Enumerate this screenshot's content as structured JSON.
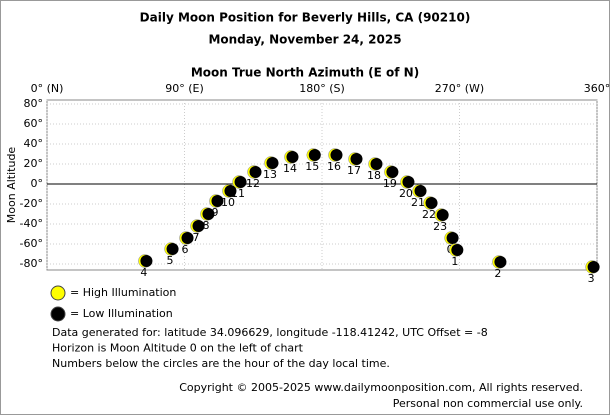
{
  "chart_data": {
    "type": "scatter",
    "title": "Daily Moon Position for Beverly Hills, CA (90210)",
    "subtitle": "Monday, November 24, 2025",
    "x_label": "Moon True North Azimuth (E of N)",
    "y_label": "Moon Altitude",
    "x": [
      64.1,
      81.2,
      91.0,
      98.2,
      104.7,
      110.6,
      119.1,
      125.7,
      135.5,
      146.6,
      159.7,
      174.3,
      188.5,
      201.6,
      214.7,
      225.1,
      235.6,
      243.5,
      250.7,
      258.0,
      264.5,
      267.6,
      295.8,
      356.8
    ],
    "values": [
      -77,
      -65,
      -54,
      -42,
      -30,
      -17,
      -7,
      2,
      12,
      21,
      27,
      29,
      29,
      25,
      20,
      12,
      2,
      -7,
      -19,
      -31,
      -54,
      -66,
      -78,
      -83
    ],
    "point_labels": [
      4,
      5,
      6,
      7,
      8,
      9,
      10,
      11,
      12,
      13,
      14,
      15,
      16,
      17,
      18,
      19,
      20,
      21,
      22,
      23,
      0,
      1,
      2,
      3
    ],
    "xlim": [
      0,
      360
    ],
    "ylim": [
      -86,
      84
    ],
    "xticks": [
      {
        "value": 0,
        "label": "0° (N)"
      },
      {
        "value": 90,
        "label": "90° (E)"
      },
      {
        "value": 180,
        "label": "180° (S)"
      },
      {
        "value": 270,
        "label": "270° (W)"
      },
      {
        "value": 360,
        "label": "360°"
      }
    ],
    "yticks": [
      {
        "value": 80,
        "label": "80°"
      },
      {
        "value": 60,
        "label": "60°"
      },
      {
        "value": 40,
        "label": "40°"
      },
      {
        "value": 20,
        "label": "20°"
      },
      {
        "value": 0,
        "label": "0°"
      },
      {
        "value": -20,
        "label": "-20°"
      },
      {
        "value": -40,
        "label": "-40°"
      },
      {
        "value": -60,
        "label": "-60°"
      },
      {
        "value": -80,
        "label": "-80°"
      }
    ],
    "horizon": 0,
    "grid": true,
    "legend": [
      {
        "name": "= High Illumination",
        "color": "#ffff00"
      },
      {
        "name": "= Low Illumination",
        "color": "#000000"
      }
    ],
    "notes": [
      "Data generated for: latitude 34.096629, longitude -118.41242, UTC Offset = -8",
      "Horizon is Moon Altitude 0 on the left of chart",
      "Numbers below the circles are the hour of the day local time."
    ],
    "copyright": [
      "Copyright © 2005-2025 www.dailymoonposition.com, All rights reserved.",
      "Personal non commercial use only."
    ]
  }
}
